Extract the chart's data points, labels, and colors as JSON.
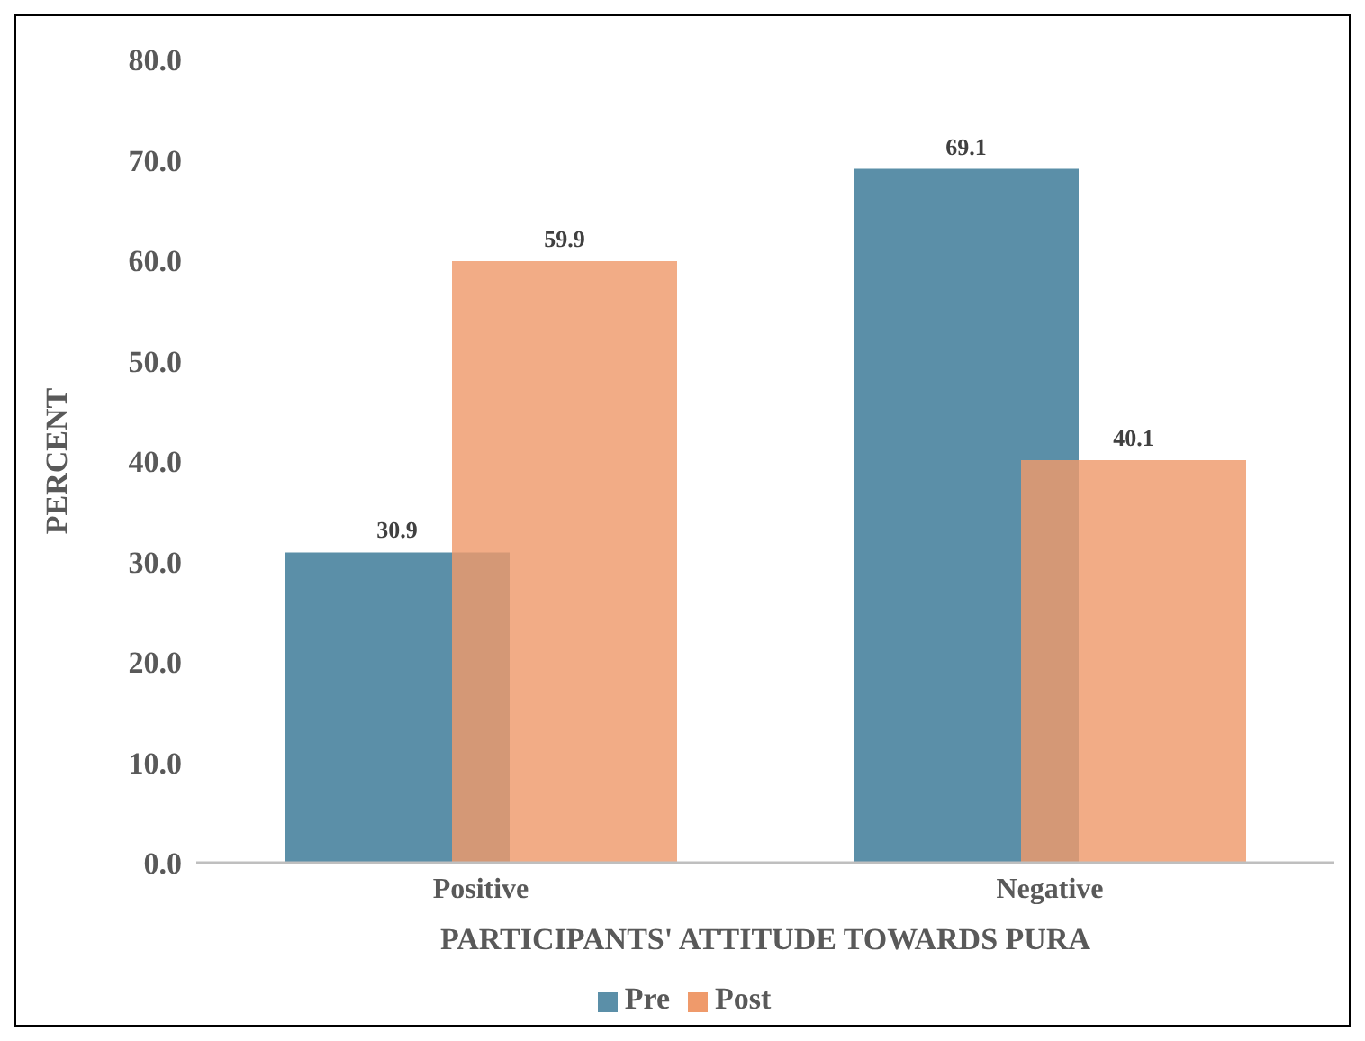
{
  "chart_data": {
    "type": "bar",
    "xlabel": "PARTICIPANTS' ATTITUDE TOWARDS PURA",
    "ylabel": "PERCENT",
    "categories": [
      "Positive",
      "Negative"
    ],
    "series": [
      {
        "name": "Pre",
        "color": "#5b8fa8",
        "values": [
          30.9,
          69.1
        ]
      },
      {
        "name": "Post",
        "color": "#ef9a6b",
        "values": [
          59.9,
          40.1
        ]
      }
    ],
    "ylim": [
      0,
      80
    ],
    "yticks": [
      {
        "value": 0,
        "label": "0.0"
      },
      {
        "value": 10,
        "label": "10.0"
      },
      {
        "value": 20,
        "label": "20.0"
      },
      {
        "value": 30,
        "label": "30.0"
      },
      {
        "value": 40,
        "label": "40.0"
      },
      {
        "value": 50,
        "label": "50.0"
      },
      {
        "value": 60,
        "label": "60.0"
      },
      {
        "value": 70,
        "label": "70.0"
      },
      {
        "value": 80,
        "label": "80.0"
      }
    ],
    "data_labels": true,
    "grid": false,
    "legend": "bottom"
  }
}
